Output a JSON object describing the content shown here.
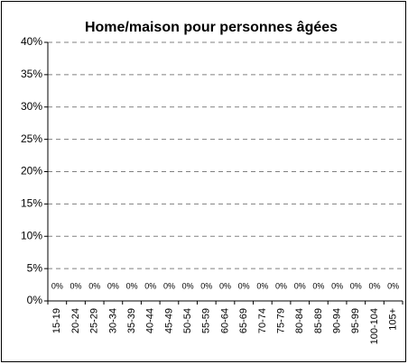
{
  "chart_data": {
    "type": "bar",
    "title": "Home/maison pour personnes âgées",
    "categories": [
      "15-19",
      "20-24",
      "25-29",
      "30-34",
      "35-39",
      "40-44",
      "45-49",
      "50-54",
      "55-59",
      "60-64",
      "65-69",
      "70-74",
      "75-79",
      "80-84",
      "85-89",
      "90-94",
      "95-99",
      "100-104",
      "105+"
    ],
    "values": [
      0,
      0,
      0,
      0,
      0,
      0,
      0,
      0,
      0,
      0,
      0,
      0,
      0,
      0,
      0,
      0,
      0,
      0,
      0
    ],
    "value_labels": [
      "0%",
      "0%",
      "0%",
      "0%",
      "0%",
      "0%",
      "0%",
      "0%",
      "0%",
      "0%",
      "0%",
      "0%",
      "0%",
      "0%",
      "0%",
      "0%",
      "0%",
      "0%",
      "0%"
    ],
    "color": "#9999ff",
    "ylim": [
      0,
      40
    ],
    "yticks": [
      {
        "value": 0,
        "label": "0%"
      },
      {
        "value": 5,
        "label": "5%"
      },
      {
        "value": 10,
        "label": "10%"
      },
      {
        "value": 15,
        "label": "15%"
      },
      {
        "value": 20,
        "label": "20%"
      },
      {
        "value": 25,
        "label": "25%"
      },
      {
        "value": 30,
        "label": "30%"
      },
      {
        "value": 35,
        "label": "35%"
      },
      {
        "value": 40,
        "label": "40%"
      }
    ],
    "grid": true
  }
}
